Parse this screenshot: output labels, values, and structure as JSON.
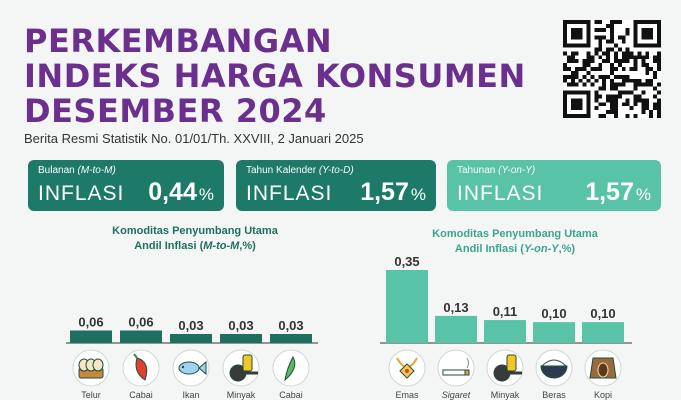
{
  "header": {
    "title_lines": [
      "PERKEMBANGAN",
      "INDEKS HARGA KONSUMEN",
      "DESEMBER 2024"
    ],
    "subtitle": "Berita Resmi Statistik No. 01/01/Th. XXVIII, 2 Januari 2025"
  },
  "cards": [
    {
      "label": "Bulanan ",
      "label_italic": "(M-to-M)",
      "kind": "INFLASI",
      "value": "0,44",
      "unit": "%",
      "color": "#1e7a68"
    },
    {
      "label": "Tahun Kalender ",
      "label_italic": "(Y-to-D)",
      "kind": "INFLASI",
      "value": "1,57",
      "unit": "%",
      "color": "#1e7a68"
    },
    {
      "label": "Tahunan ",
      "label_italic": "(Y-on-Y)",
      "kind": "INFLASI",
      "value": "1,57",
      "unit": "%",
      "color": "#59c3a7"
    }
  ],
  "chart_left_title": {
    "line1": "Komoditas Penyumbang Utama",
    "line2_prefix": "Andil Inflasi (",
    "line2_italic": "M-to-M",
    "line2_suffix": ",%)"
  },
  "chart_right_title": {
    "line1": "Komoditas Penyumbang Utama",
    "line2_prefix": "Andil Inflasi (",
    "line2_italic": "Y-on-Y",
    "line2_suffix": ",%)"
  },
  "chart_data": [
    {
      "type": "bar",
      "title": "Komoditas Penyumbang Utama Andil Inflasi (M-to-M,%)",
      "categories": [
        "Telur",
        "Cabai",
        "Ikan",
        "Minyak",
        "Cabai"
      ],
      "values": [
        0.06,
        0.06,
        0.03,
        0.03,
        0.03
      ],
      "value_labels": [
        "0,06",
        "0,06",
        "0,03",
        "0,03",
        "0,03"
      ],
      "bar_color": "#1e6f5e",
      "icons": [
        "egg-basket-icon",
        "chili-icon",
        "fish-icon",
        "cooking-oil-icon",
        "green-chili-icon"
      ],
      "ylim": [
        0,
        0.35
      ]
    },
    {
      "type": "bar",
      "title": "Komoditas Penyumbang Utama Andil Inflasi (Y-on-Y,%)",
      "categories": [
        "Emas",
        "Sigaret",
        "Minyak",
        "Beras",
        "Kopi"
      ],
      "values": [
        0.35,
        0.13,
        0.11,
        0.1,
        0.1
      ],
      "value_labels": [
        "0,35",
        "0,13",
        "0,11",
        "0,10",
        "0,10"
      ],
      "bar_color": "#59c3a7",
      "icons": [
        "gold-jewelry-icon",
        "cigarette-icon",
        "cooking-oil-icon",
        "rice-bowl-icon",
        "coffee-sack-icon"
      ],
      "ylim": [
        0,
        0.35
      ]
    }
  ]
}
